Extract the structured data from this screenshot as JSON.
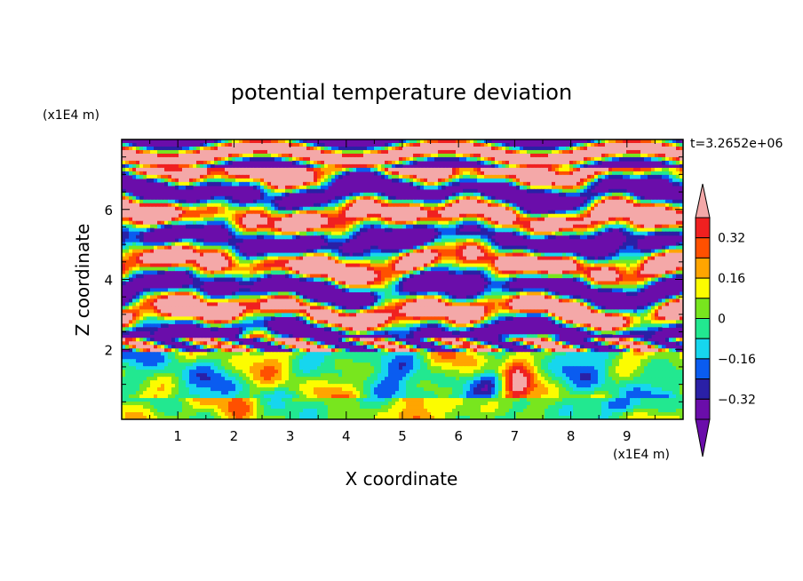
{
  "chart_data": {
    "type": "heatmap",
    "title": "potential temperature deviation",
    "xlabel": "X coordinate",
    "ylabel": "Z coordinate",
    "x_unit": "(x1E4 m)",
    "y_unit": "(x1E4 m)",
    "time_label": "t=3.2652e+06",
    "xlim": [
      0,
      10
    ],
    "ylim": [
      0,
      8
    ],
    "x_ticks": [
      1,
      2,
      3,
      4,
      5,
      6,
      7,
      8,
      9
    ],
    "y_ticks": [
      2,
      4,
      6
    ],
    "colorbar": {
      "levels": [
        -0.4,
        -0.32,
        -0.24,
        -0.16,
        -0.08,
        0,
        0.08,
        0.16,
        0.24,
        0.32,
        0.4
      ],
      "tick_labels": [
        "0.32",
        "0.16",
        "0",
        "−0.16",
        "−0.32"
      ],
      "tick_values": [
        0.32,
        0.16,
        0,
        -0.16,
        -0.32
      ],
      "colors": [
        "#6a0daa",
        "#2a20a6",
        "#0a5cf0",
        "#16d6ee",
        "#22e890",
        "#78e61e",
        "#fcfc00",
        "#ffa500",
        "#ff5000",
        "#f02020",
        "#f4a8a8"
      ]
    },
    "field_description": "layered turbulent potential temperature deviation field; strong alternating purple/pink bands aloft, mixed green/cyan/yellow boundary layer near the surface"
  }
}
